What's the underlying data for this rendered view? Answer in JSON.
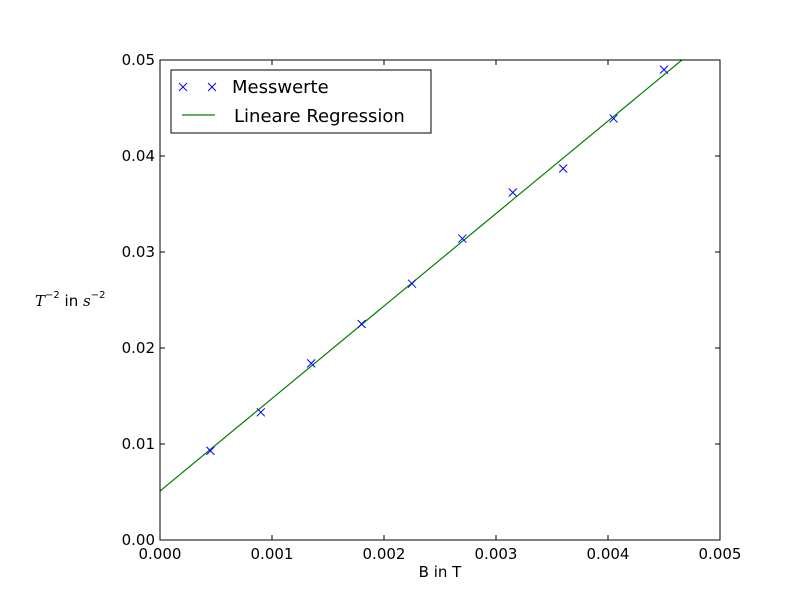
{
  "chart_data": {
    "type": "scatter",
    "xlabel": "B in T",
    "ylabel": {
      "main": "T",
      "main_exp": "−2",
      "mid": " in ",
      "unit": "s",
      "unit_exp": "−2"
    },
    "xlim": [
      0,
      0.005
    ],
    "ylim": [
      0,
      0.05
    ],
    "x_ticks": [
      "0.000",
      "0.001",
      "0.002",
      "0.003",
      "0.004",
      "0.005"
    ],
    "y_ticks": [
      "0.00",
      "0.01",
      "0.02",
      "0.03",
      "0.04",
      "0.05"
    ],
    "grid": false,
    "legend_position": "top-left",
    "series": [
      {
        "name": "Messwerte",
        "kind": "marker",
        "marker": "x",
        "color": "#0000ff",
        "points": [
          {
            "x": 0.00045,
            "y": 0.0093
          },
          {
            "x": 0.0009,
            "y": 0.0133
          },
          {
            "x": 0.00135,
            "y": 0.0184
          },
          {
            "x": 0.0018,
            "y": 0.0225
          },
          {
            "x": 0.00225,
            "y": 0.0267
          },
          {
            "x": 0.0027,
            "y": 0.0314
          },
          {
            "x": 0.00315,
            "y": 0.0362
          },
          {
            "x": 0.0036,
            "y": 0.0387
          },
          {
            "x": 0.00405,
            "y": 0.0439
          },
          {
            "x": 0.0045,
            "y": 0.049
          }
        ]
      },
      {
        "name": "Lineare Regression",
        "kind": "line",
        "color": "#008000",
        "points": [
          {
            "x": 0.0,
            "y": 0.0051
          },
          {
            "x": 0.00466,
            "y": 0.05
          }
        ]
      }
    ]
  }
}
